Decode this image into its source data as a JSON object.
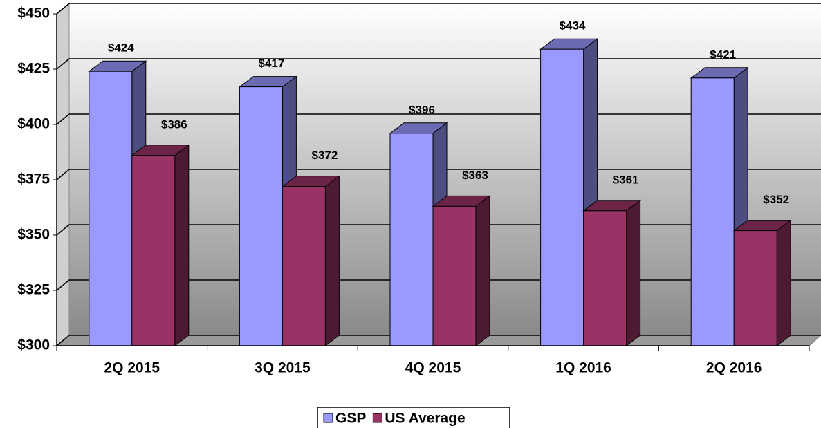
{
  "chart_data": {
    "type": "bar3d",
    "categories": [
      "2Q 2015",
      "3Q 2015",
      "4Q 2015",
      "1Q 2016",
      "2Q 2016"
    ],
    "series": [
      {
        "name": "GSP",
        "color": "#9999ff",
        "values": [
          424,
          417,
          396,
          434,
          421
        ],
        "value_labels": [
          "$424",
          "$417",
          "$396",
          "$434",
          "$421"
        ]
      },
      {
        "name": "US Average",
        "color": "#993366",
        "values": [
          386,
          372,
          363,
          361,
          352
        ],
        "value_labels": [
          "$386",
          "$372",
          "$363",
          "$361",
          "$352"
        ]
      }
    ],
    "ylim": [
      300,
      450
    ],
    "yticks": [
      {
        "value": 300,
        "label": "$300"
      },
      {
        "value": 325,
        "label": "$325"
      },
      {
        "value": 350,
        "label": "$350"
      },
      {
        "value": 375,
        "label": "$375"
      },
      {
        "value": 400,
        "label": "$400"
      },
      {
        "value": 425,
        "label": "$425"
      },
      {
        "value": 450,
        "label": "$450"
      }
    ],
    "grid": true,
    "legend": "bottom"
  }
}
